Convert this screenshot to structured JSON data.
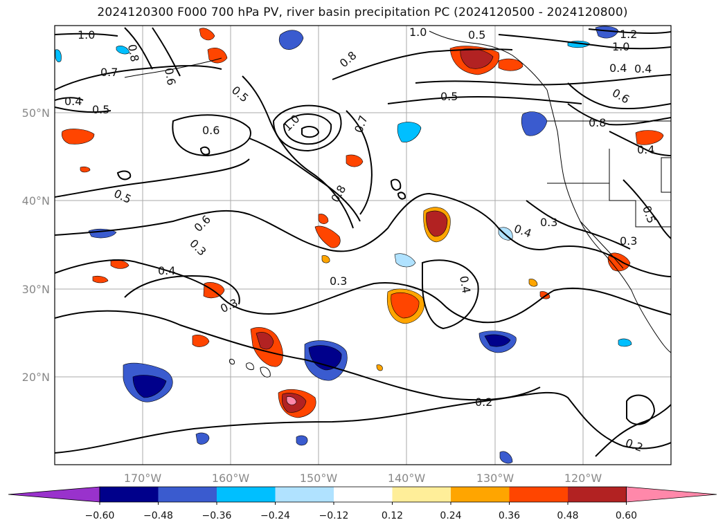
{
  "title": "2024120300 F000 700 hPa PV, river basin precipitation PC (2024120500 - 2024120800)",
  "lat_labels": [
    "50°N",
    "40°N",
    "30°N",
    "20°N"
  ],
  "lon_labels": [
    "170°W",
    "160°W",
    "150°W",
    "140°W",
    "130°W",
    "120°W"
  ],
  "contour_labels": [
    "1.0",
    "0.8",
    "0.7",
    "0.4",
    "0.5",
    "0.6",
    "0.5",
    "1.0",
    "0.8",
    "1.0",
    "1.2",
    "1.0",
    "0.7",
    "0.5",
    "0.6",
    "0.5",
    "0.8",
    "0.6",
    "0.4",
    "0.5",
    "0.4",
    "0.3",
    "0.4",
    "0.3",
    "0.3",
    "0.4",
    "0.3",
    "0.4",
    "0.2",
    "0.2",
    "0.3",
    "0.5",
    "0.4",
    "0.6",
    "0.8"
  ],
  "colorbar": {
    "ticks": [
      "−0.60",
      "−0.48",
      "−0.36",
      "−0.24",
      "−0.12",
      "0.12",
      "0.24",
      "0.36",
      "0.48",
      "0.60"
    ],
    "colors": {
      "under": "#9932cc",
      "c1": "#00008b",
      "c2": "#3a5bcf",
      "c3": "#00bfff",
      "c4": "#b0e2ff",
      "c5": "#ffffff",
      "c6": "#ffee99",
      "c7": "#ffa500",
      "c8": "#ff4500",
      "c9": "#b22222",
      "over": "#ff88aa"
    }
  }
}
